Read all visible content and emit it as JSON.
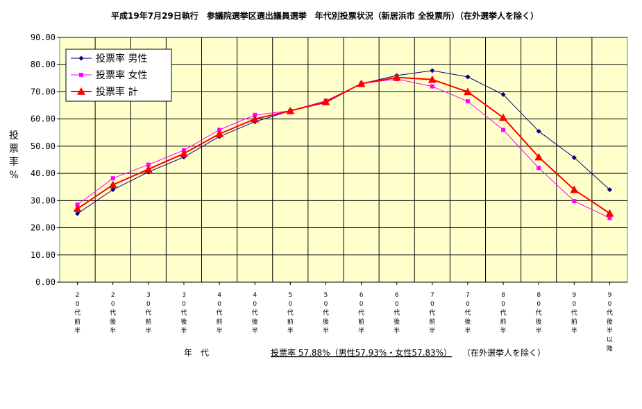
{
  "chart_data": {
    "type": "line",
    "title": "平成19年7月29日執行　参議院選挙区選出議員選挙　年代別投票状況（新居浜市 全投票所）（在外選挙人を除く）",
    "ylabel": "投票率%",
    "xlabel": "年　代",
    "ylim": [
      0,
      90
    ],
    "yticks": [
      "0.00",
      "10.00",
      "20.00",
      "30.00",
      "40.00",
      "50.00",
      "60.00",
      "70.00",
      "80.00",
      "90.00"
    ],
    "grid": true,
    "legend_position": "top-left",
    "categories": [
      "20代前半",
      "20代後半",
      "30代前半",
      "30代後半",
      "40代前半",
      "40代後半",
      "50代前半",
      "50代後半",
      "60代前半",
      "60代後半",
      "70代前半",
      "70代後半",
      "80代前半",
      "80代後半",
      "90代前半",
      "90代後半以降"
    ],
    "series": [
      {
        "name": "投票率 男性",
        "color": "#000080",
        "marker": "diamond",
        "values": [
          25.2,
          34.0,
          40.5,
          46.0,
          53.5,
          59.0,
          63.0,
          66.0,
          73.0,
          76.0,
          77.8,
          75.5,
          69.0,
          55.5,
          45.8,
          34.0
        ]
      },
      {
        "name": "投票率 女性",
        "color": "#ff00ff",
        "marker": "square",
        "values": [
          28.5,
          38.2,
          43.2,
          48.5,
          56.0,
          61.5,
          63.0,
          66.7,
          73.0,
          74.7,
          72.0,
          66.5,
          56.0,
          42.0,
          29.8,
          23.6
        ]
      },
      {
        "name": "投票率 計",
        "color": "#ff0000",
        "marker": "triangle",
        "values": [
          27.0,
          35.8,
          41.5,
          47.3,
          54.5,
          60.0,
          63.0,
          66.3,
          73.0,
          75.3,
          74.5,
          70.0,
          60.5,
          46.0,
          34.0,
          25.3
        ]
      }
    ],
    "footer_summary": "投票率 57.88%（男性57.93%・女性57.83%）",
    "footer_note": "（在外選挙人を除く）"
  }
}
